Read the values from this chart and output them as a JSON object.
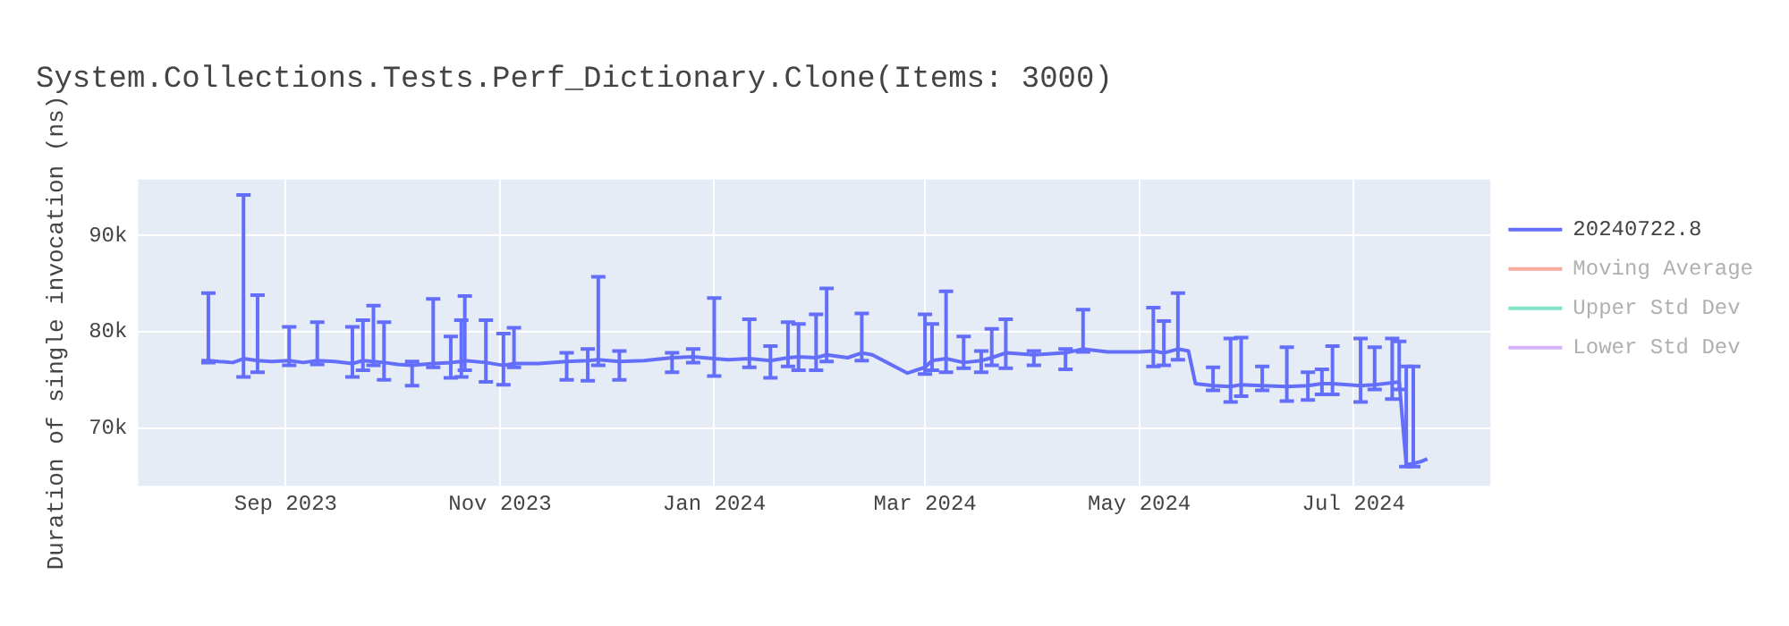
{
  "chart_data": {
    "type": "line",
    "title": "System.Collections.Tests.Perf_Dictionary.Clone(Items: 3000)",
    "ylabel": "Duration of single invocation (ns)",
    "x": [
      "2023-08-08",
      "2023-08-10",
      "2023-08-13",
      "2023-08-17",
      "2023-08-20",
      "2023-08-24",
      "2023-08-28",
      "2023-09-02",
      "2023-09-06",
      "2023-09-10",
      "2023-09-15",
      "2023-09-20",
      "2023-09-23",
      "2023-09-26",
      "2023-09-29",
      "2023-10-03",
      "2023-10-07",
      "2023-10-13",
      "2023-10-18",
      "2023-10-21",
      "2023-10-22",
      "2023-10-28",
      "2023-11-02",
      "2023-11-05",
      "2023-11-12",
      "2023-11-20",
      "2023-11-26",
      "2023-11-29",
      "2023-12-05",
      "2023-12-12",
      "2023-12-20",
      "2023-12-26",
      "2024-01-01",
      "2024-01-05",
      "2024-01-11",
      "2024-01-17",
      "2024-01-22",
      "2024-01-25",
      "2024-01-30",
      "2024-02-02",
      "2024-02-08",
      "2024-02-12",
      "2024-02-15",
      "2024-02-25",
      "2024-03-01",
      "2024-03-03",
      "2024-03-07",
      "2024-03-12",
      "2024-03-17",
      "2024-03-20",
      "2024-03-24",
      "2024-04-01",
      "2024-04-10",
      "2024-04-15",
      "2024-04-22",
      "2024-05-01",
      "2024-05-05",
      "2024-05-08",
      "2024-05-12",
      "2024-05-15",
      "2024-05-17",
      "2024-05-22",
      "2024-05-27",
      "2024-05-30",
      "2024-06-05",
      "2024-06-12",
      "2024-06-18",
      "2024-06-22",
      "2024-06-25",
      "2024-07-03",
      "2024-07-07",
      "2024-07-12",
      "2024-07-14",
      "2024-07-16",
      "2024-07-18",
      "2024-07-20",
      "2024-07-22"
    ],
    "series": [
      {
        "name": "20240722.8",
        "color": "#636efa",
        "values": [
          77000,
          77000,
          76900,
          76800,
          77200,
          77000,
          76900,
          77000,
          76800,
          77000,
          76900,
          76700,
          77000,
          76900,
          76800,
          76600,
          76500,
          76700,
          76800,
          76900,
          77000,
          76800,
          76500,
          76700,
          76700,
          76900,
          77000,
          77100,
          76900,
          77000,
          77300,
          77400,
          77200,
          77100,
          77200,
          77000,
          77300,
          77400,
          77300,
          77600,
          77300,
          77800,
          77600,
          75700,
          76300,
          77000,
          77200,
          76800,
          77000,
          77300,
          77800,
          77600,
          77800,
          78200,
          77900,
          77900,
          78000,
          77800,
          78200,
          78000,
          74600,
          74400,
          74300,
          74500,
          74400,
          74300,
          74400,
          74600,
          74600,
          74400,
          74500,
          74700,
          74800,
          66200,
          66300,
          66500,
          66800
        ],
        "errors": [
          null,
          [
            76800,
            84000
          ],
          null,
          null,
          [
            75300,
            94200
          ],
          [
            75800,
            83800
          ],
          null,
          [
            76500,
            80500
          ],
          null,
          [
            76600,
            81000
          ],
          null,
          [
            75300,
            80500
          ],
          [
            76000,
            81200
          ],
          [
            76500,
            82700
          ],
          [
            75000,
            81000
          ],
          null,
          [
            74400,
            76900
          ],
          [
            76300,
            83400
          ],
          [
            75200,
            79500
          ],
          [
            75300,
            81200
          ],
          [
            76000,
            83700
          ],
          [
            74800,
            81200
          ],
          [
            74500,
            79800
          ],
          [
            76300,
            80400
          ],
          null,
          [
            75000,
            77800
          ],
          [
            74900,
            78200
          ],
          [
            76500,
            85700
          ],
          [
            75000,
            78000
          ],
          null,
          [
            75800,
            77800
          ],
          [
            76800,
            78200
          ],
          [
            75400,
            83500
          ],
          null,
          [
            76300,
            81300
          ],
          [
            75200,
            78500
          ],
          [
            76400,
            81000
          ],
          [
            76000,
            80800
          ],
          [
            76000,
            81800
          ],
          [
            76900,
            84500
          ],
          null,
          [
            77000,
            81900
          ],
          null,
          null,
          [
            75600,
            81800
          ],
          [
            76000,
            80800
          ],
          [
            75800,
            84200
          ],
          [
            76200,
            79500
          ],
          [
            75800,
            78000
          ],
          [
            76500,
            80300
          ],
          [
            76200,
            81300
          ],
          [
            76500,
            78000
          ],
          [
            76100,
            78200
          ],
          [
            77900,
            82300
          ],
          null,
          null,
          [
            76400,
            82500
          ],
          [
            76500,
            81100
          ],
          [
            77100,
            84000
          ],
          null,
          null,
          [
            73900,
            76300
          ],
          [
            72700,
            79300
          ],
          [
            73300,
            79400
          ],
          [
            73900,
            76400
          ],
          [
            72800,
            78400
          ],
          [
            72900,
            75800
          ],
          [
            73500,
            76100
          ],
          [
            73500,
            78500
          ],
          [
            72700,
            79300
          ],
          [
            74000,
            78400
          ],
          [
            73000,
            79300
          ],
          [
            74000,
            79000
          ],
          [
            66000,
            76400
          ],
          [
            66000,
            76400
          ],
          null,
          null
        ]
      },
      {
        "name": "Moving Average",
        "color": "#ef553b",
        "values": [
          null,
          null,
          null,
          null,
          null,
          null,
          null,
          null,
          null,
          null,
          null,
          null,
          null,
          null,
          null,
          null,
          null,
          null,
          null,
          null,
          null,
          null,
          null,
          null,
          null,
          null,
          null,
          null,
          null,
          null,
          null,
          null,
          null,
          null,
          null,
          null,
          null,
          null,
          null,
          null,
          null,
          null,
          null,
          null,
          null,
          null,
          null,
          null,
          null,
          null,
          null,
          null,
          null,
          null,
          null,
          null,
          null,
          null,
          null,
          null,
          null,
          null,
          null,
          null,
          null,
          null,
          null,
          null,
          null,
          null,
          null,
          null,
          null,
          null,
          null,
          null,
          null
        ]
      },
      {
        "name": "Upper Std Dev",
        "color": "#00cc96",
        "values": [
          null,
          null,
          null,
          null,
          null,
          null,
          null,
          null,
          null,
          null,
          null,
          null,
          null,
          null,
          null,
          null,
          null,
          null,
          null,
          null,
          null,
          null,
          null,
          null,
          null,
          null,
          null,
          null,
          null,
          null,
          null,
          null,
          null,
          null,
          null,
          null,
          null,
          null,
          null,
          null,
          null,
          null,
          null,
          null,
          null,
          null,
          null,
          null,
          null,
          null,
          null,
          null,
          null,
          null,
          null,
          null,
          null,
          null,
          null,
          null,
          null,
          null,
          null,
          null,
          null,
          null,
          null,
          null,
          null,
          null,
          null,
          null,
          null,
          null,
          null,
          null,
          null
        ]
      },
      {
        "name": "Lower Std Dev",
        "color": "#ab63fa",
        "values": [
          null,
          null,
          null,
          null,
          null,
          null,
          null,
          null,
          null,
          null,
          null,
          null,
          null,
          null,
          null,
          null,
          null,
          null,
          null,
          null,
          null,
          null,
          null,
          null,
          null,
          null,
          null,
          null,
          null,
          null,
          null,
          null,
          null,
          null,
          null,
          null,
          null,
          null,
          null,
          null,
          null,
          null,
          null,
          null,
          null,
          null,
          null,
          null,
          null,
          null,
          null,
          null,
          null,
          null,
          null,
          null,
          null,
          null,
          null,
          null,
          null,
          null,
          null,
          null,
          null,
          null,
          null,
          null,
          null,
          null,
          null,
          null,
          null,
          null,
          null,
          null,
          null
        ]
      }
    ],
    "xlim": [
      "2023-07-21",
      "2024-08-09"
    ],
    "xticks": [
      {
        "value": "2023-09-01",
        "label": "Sep 2023"
      },
      {
        "value": "2023-11-01",
        "label": "Nov 2023"
      },
      {
        "value": "2024-01-01",
        "label": "Jan 2024"
      },
      {
        "value": "2024-03-01",
        "label": "Mar 2024"
      },
      {
        "value": "2024-05-01",
        "label": "May 2024"
      },
      {
        "value": "2024-07-01",
        "label": "Jul 2024"
      }
    ],
    "ylim": [
      64000,
      95800
    ],
    "yticks": [
      {
        "value": 70000,
        "label": "70k"
      },
      {
        "value": 80000,
        "label": "80k"
      },
      {
        "value": 90000,
        "label": "90k"
      }
    ],
    "grid": true,
    "legend": "top right",
    "line_style": "solid",
    "marker": "none"
  }
}
